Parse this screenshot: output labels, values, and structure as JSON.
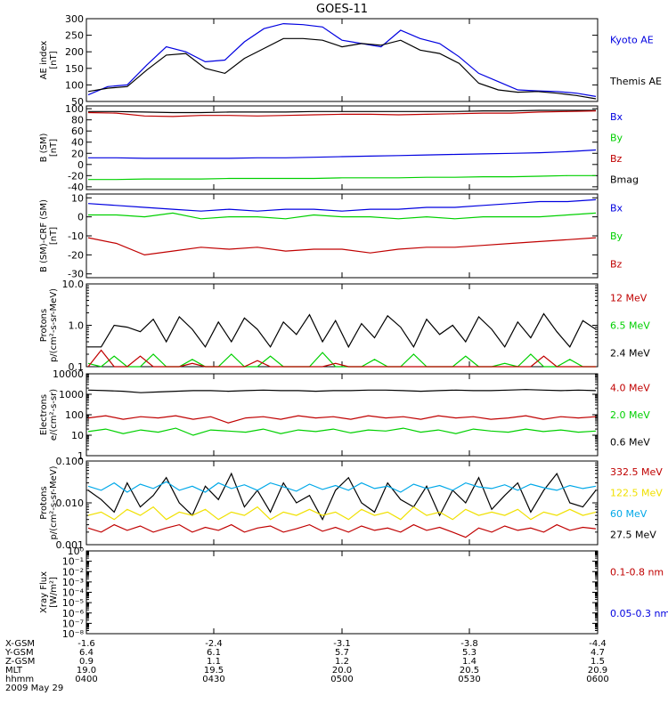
{
  "title": "GOES-11",
  "colors": {
    "black": "#000000",
    "blue": "#0000e0",
    "red": "#c00000",
    "green": "#00d000",
    "yellow": "#f0e000",
    "cyan": "#00a8e8"
  },
  "chart_data": [
    {
      "type": "line",
      "ylabel": [
        "AE index",
        "[nT]"
      ],
      "ylim": [
        50,
        300
      ],
      "ticks": [
        "300",
        "250",
        "200",
        "150",
        "100",
        "50"
      ],
      "tick_values": [
        300,
        250,
        200,
        150,
        100,
        50
      ],
      "legend": [
        {
          "name": "Kyoto AE",
          "color": "blue"
        },
        {
          "name": "Themis AE",
          "color": "black"
        }
      ],
      "series": [
        {
          "name": "Kyoto AE",
          "color": "blue",
          "values": [
            70,
            95,
            100,
            160,
            215,
            200,
            170,
            175,
            230,
            270,
            285,
            282,
            275,
            235,
            225,
            215,
            265,
            240,
            225,
            185,
            135,
            110,
            85,
            82,
            80,
            75,
            65
          ]
        },
        {
          "name": "Themis AE",
          "color": "black",
          "values": [
            80,
            90,
            95,
            145,
            190,
            195,
            150,
            135,
            180,
            210,
            240,
            240,
            235,
            215,
            225,
            220,
            235,
            205,
            195,
            165,
            105,
            85,
            78,
            80,
            75,
            68,
            58
          ]
        }
      ]
    },
    {
      "type": "line",
      "ylabel": [
        "B (SM)",
        "[nT]"
      ],
      "ylim": [
        -45,
        105
      ],
      "ticks": [
        "100",
        "80",
        "60",
        "40",
        "20",
        "0",
        "-20",
        "-40"
      ],
      "tick_values": [
        100,
        80,
        60,
        40,
        20,
        0,
        -20,
        -40
      ],
      "legend": [
        {
          "name": "Bx",
          "color": "blue"
        },
        {
          "name": "By",
          "color": "green"
        },
        {
          "name": "Bz",
          "color": "red"
        },
        {
          "name": "Bmag",
          "color": "black"
        }
      ],
      "series": [
        {
          "name": "Bmag",
          "color": "black",
          "values": [
            95,
            95,
            94,
            93,
            93,
            94,
            94,
            94,
            95,
            95,
            95,
            95,
            95,
            95,
            96,
            96,
            97,
            97,
            97
          ]
        },
        {
          "name": "Bz",
          "color": "red",
          "values": [
            93,
            92,
            87,
            86,
            88,
            88,
            87,
            88,
            89,
            90,
            90,
            89,
            90,
            91,
            92,
            92,
            94,
            95,
            96
          ]
        },
        {
          "name": "Bx",
          "color": "blue",
          "values": [
            12,
            12,
            11,
            11,
            11,
            11,
            12,
            12,
            13,
            14,
            15,
            16,
            17,
            18,
            19,
            20,
            21,
            23,
            26
          ]
        },
        {
          "name": "By",
          "color": "green",
          "values": [
            -27,
            -27,
            -26,
            -26,
            -26,
            -25,
            -25,
            -25,
            -25,
            -24,
            -24,
            -24,
            -23,
            -23,
            -22,
            -22,
            -21,
            -20,
            -20
          ]
        }
      ]
    },
    {
      "type": "line",
      "ylabel": [
        "B (SM)-CRF (SM)",
        "[nT]"
      ],
      "ylim": [
        -32,
        12
      ],
      "ticks": [
        "10",
        "0",
        "-10",
        "-20",
        "-30"
      ],
      "tick_values": [
        10,
        0,
        -10,
        -20,
        -30
      ],
      "legend": [
        {
          "name": "Bx",
          "color": "blue"
        },
        {
          "name": "By",
          "color": "green"
        },
        {
          "name": "Bz",
          "color": "red"
        }
      ],
      "series": [
        {
          "name": "Bx",
          "color": "blue",
          "values": [
            7,
            6,
            5,
            4,
            3,
            4,
            3,
            4,
            4,
            3,
            4,
            4,
            5,
            5,
            6,
            7,
            8,
            8,
            9
          ]
        },
        {
          "name": "By",
          "color": "green",
          "values": [
            1,
            1,
            0,
            2,
            -1,
            0,
            0,
            -1,
            1,
            0,
            0,
            -1,
            0,
            -1,
            0,
            0,
            0,
            1,
            2
          ]
        },
        {
          "name": "Bz",
          "color": "red",
          "values": [
            -11,
            -14,
            -20,
            -18,
            -16,
            -17,
            -16,
            -18,
            -17,
            -17,
            -19,
            -17,
            -16,
            -16,
            -15,
            -14,
            -13,
            -12,
            -11
          ]
        }
      ]
    },
    {
      "type": "line",
      "log": true,
      "ylabel": [
        "Protons",
        "p/(cm²-s-sr-MeV)"
      ],
      "ylim": [
        0.1,
        10
      ],
      "ticks": [
        "10.0",
        "1.0",
        "0.1"
      ],
      "tick_values": [
        10,
        1,
        0.1
      ],
      "legend": [
        {
          "name": "12 MeV",
          "color": "red"
        },
        {
          "name": "6.5 MeV",
          "color": "green"
        },
        {
          "name": "2.4 MeV",
          "color": "black"
        }
      ],
      "series": [
        {
          "name": "2.4 MeV",
          "color": "black",
          "values": [
            0.3,
            0.3,
            1.0,
            0.9,
            0.7,
            1.4,
            0.4,
            1.6,
            0.8,
            0.3,
            1.2,
            0.4,
            1.5,
            0.8,
            0.3,
            1.2,
            0.6,
            1.8,
            0.4,
            1.3,
            0.3,
            1.1,
            0.5,
            1.7,
            0.9,
            0.3,
            1.4,
            0.6,
            1.0,
            0.4,
            1.6,
            0.8,
            0.3,
            1.2,
            0.5,
            1.9,
            0.7,
            0.3,
            1.3,
            0.8
          ]
        },
        {
          "name": "6.5 MeV",
          "color": "green",
          "values": [
            0.12,
            0.1,
            0.18,
            0.1,
            0.1,
            0.2,
            0.1,
            0.1,
            0.15,
            0.1,
            0.1,
            0.2,
            0.1,
            0.1,
            0.18,
            0.1,
            0.1,
            0.1,
            0.22,
            0.1,
            0.1,
            0.1,
            0.15,
            0.1,
            0.1,
            0.2,
            0.1,
            0.1,
            0.1,
            0.18,
            0.1,
            0.1,
            0.12,
            0.1,
            0.2,
            0.1,
            0.1,
            0.15,
            0.1,
            0.1
          ]
        },
        {
          "name": "12 MeV",
          "color": "red",
          "values": [
            0.1,
            0.25,
            0.1,
            0.1,
            0.18,
            0.1,
            0.1,
            0.1,
            0.12,
            0.1,
            0.1,
            0.1,
            0.1,
            0.14,
            0.1,
            0.1,
            0.1,
            0.1,
            0.1,
            0.12,
            0.1,
            0.1,
            0.1,
            0.1,
            0.1,
            0.1,
            0.1,
            0.1,
            0.1,
            0.1,
            0.1,
            0.1,
            0.1,
            0.1,
            0.1,
            0.18,
            0.1,
            0.1,
            0.1,
            0.1
          ]
        }
      ]
    },
    {
      "type": "line",
      "log": true,
      "ylabel": [
        "Electrons",
        "e/(cm²-s-sr)"
      ],
      "ylim": [
        1,
        10000
      ],
      "ticks": [
        "10000",
        "1000",
        "100",
        "10",
        "1"
      ],
      "tick_values": [
        10000,
        1000,
        100,
        10,
        1
      ],
      "legend": [
        {
          "name": "4.0 MeV",
          "color": "red"
        },
        {
          "name": "2.0 MeV",
          "color": "green"
        },
        {
          "name": "0.6 MeV",
          "color": "black"
        }
      ],
      "series": [
        {
          "name": "0.6 MeV",
          "color": "black",
          "values": [
            1600,
            1500,
            1400,
            1200,
            1300,
            1400,
            1500,
            1500,
            1400,
            1500,
            1600,
            1500,
            1500,
            1400,
            1500,
            1500,
            1600,
            1600,
            1500,
            1400,
            1500,
            1600,
            1500,
            1500,
            1600,
            1700,
            1600,
            1500,
            1600,
            1500
          ]
        },
        {
          "name": "4.0 MeV",
          "color": "red",
          "values": [
            70,
            90,
            60,
            80,
            70,
            90,
            60,
            80,
            40,
            70,
            80,
            60,
            90,
            70,
            80,
            60,
            90,
            70,
            80,
            60,
            90,
            70,
            80,
            60,
            70,
            90,
            60,
            80,
            70,
            80
          ]
        },
        {
          "name": "2.0 MeV",
          "color": "green",
          "values": [
            15,
            20,
            12,
            18,
            14,
            22,
            10,
            18,
            16,
            14,
            20,
            12,
            18,
            15,
            20,
            13,
            18,
            16,
            22,
            14,
            18,
            12,
            20,
            16,
            14,
            20,
            15,
            18,
            14,
            16
          ]
        }
      ]
    },
    {
      "type": "line",
      "log": true,
      "ylabel": [
        "Protons",
        "p/(cm²-s-sr-MeV)"
      ],
      "ylim": [
        0.001,
        0.1
      ],
      "ticks": [
        "0.100",
        "0.010",
        "0.001"
      ],
      "tick_values": [
        0.1,
        0.01,
        0.001
      ],
      "legend": [
        {
          "name": "332.5 MeV",
          "color": "red"
        },
        {
          "name": "122.5 MeV",
          "color": "yellow"
        },
        {
          "name": "60 MeV",
          "color": "cyan"
        },
        {
          "name": "27.5 MeV",
          "color": "black"
        }
      ],
      "series": [
        {
          "name": "27.5 MeV",
          "color": "black",
          "values": [
            0.02,
            0.012,
            0.006,
            0.03,
            0.008,
            0.015,
            0.04,
            0.01,
            0.005,
            0.025,
            0.012,
            0.05,
            0.008,
            0.02,
            0.006,
            0.03,
            0.01,
            0.015,
            0.004,
            0.02,
            0.04,
            0.01,
            0.006,
            0.03,
            0.012,
            0.008,
            0.025,
            0.005,
            0.02,
            0.01,
            0.04,
            0.007,
            0.015,
            0.03,
            0.006,
            0.02,
            0.05,
            0.01,
            0.008,
            0.02
          ]
        },
        {
          "name": "60 MeV",
          "color": "cyan",
          "values": [
            0.025,
            0.02,
            0.03,
            0.018,
            0.028,
            0.022,
            0.032,
            0.02,
            0.025,
            0.018,
            0.03,
            0.022,
            0.027,
            0.02,
            0.03,
            0.024,
            0.019,
            0.028,
            0.021,
            0.026,
            0.02,
            0.03,
            0.022,
            0.025,
            0.018,
            0.028,
            0.022,
            0.026,
            0.02,
            0.03,
            0.024,
            0.022,
            0.027,
            0.02,
            0.028,
            0.023,
            0.02,
            0.026,
            0.022,
            0.025
          ]
        },
        {
          "name": "122.5 MeV",
          "color": "yellow",
          "values": [
            0.005,
            0.006,
            0.004,
            0.007,
            0.005,
            0.008,
            0.004,
            0.006,
            0.005,
            0.007,
            0.004,
            0.006,
            0.005,
            0.008,
            0.004,
            0.006,
            0.005,
            0.007,
            0.005,
            0.006,
            0.004,
            0.007,
            0.005,
            0.006,
            0.004,
            0.008,
            0.005,
            0.006,
            0.004,
            0.007,
            0.005,
            0.006,
            0.005,
            0.007,
            0.004,
            0.006,
            0.005,
            0.007,
            0.005,
            0.006
          ]
        },
        {
          "name": "332.5 MeV",
          "color": "red",
          "values": [
            0.0025,
            0.002,
            0.003,
            0.0022,
            0.0028,
            0.002,
            0.0025,
            0.003,
            0.002,
            0.0026,
            0.0022,
            0.003,
            0.002,
            0.0025,
            0.0028,
            0.002,
            0.0024,
            0.003,
            0.0021,
            0.0026,
            0.002,
            0.0028,
            0.0022,
            0.0025,
            0.002,
            0.003,
            0.0022,
            0.0026,
            0.002,
            0.0015,
            0.0025,
            0.002,
            0.0028,
            0.0022,
            0.0025,
            0.002,
            0.003,
            0.0022,
            0.0026,
            0.0024
          ]
        }
      ]
    },
    {
      "type": "line",
      "log": true,
      "ylabel": [
        "Xray Flux",
        "[W/m²]"
      ],
      "ylim": [
        1e-08,
        1
      ],
      "ticks": [
        "10⁰",
        "10⁻¹",
        "10⁻²",
        "10⁻³",
        "10⁻⁴",
        "10⁻⁵",
        "10⁻⁶",
        "10⁻⁷",
        "10⁻⁸"
      ],
      "tick_values": [
        1,
        0.1,
        0.01,
        0.001,
        0.0001,
        1e-05,
        1e-06,
        1e-07,
        1e-08
      ],
      "legend": [
        {
          "name": "0.1-0.8 nm",
          "color": "red"
        },
        {
          "name": "0.05-0.3 nm",
          "color": "blue"
        }
      ],
      "series": []
    }
  ],
  "xaxis": {
    "labels": [
      "X-GSM",
      "Y-GSM",
      "Z-GSM",
      "MLT",
      "hhmm"
    ],
    "columns": [
      [
        "-1.6",
        "6.4",
        "0.9",
        "19.0",
        "0400"
      ],
      [
        "-2.4",
        "6.1",
        "1.1",
        "19.5",
        "0430"
      ],
      [
        "-3.1",
        "5.7",
        "1.2",
        "20.0",
        "0500"
      ],
      [
        "-3.8",
        "5.3",
        "1.4",
        "20.5",
        "0530"
      ],
      [
        "-4.4",
        "4.7",
        "1.5",
        "20.9",
        "0600"
      ]
    ],
    "date": "2009 May 29"
  }
}
